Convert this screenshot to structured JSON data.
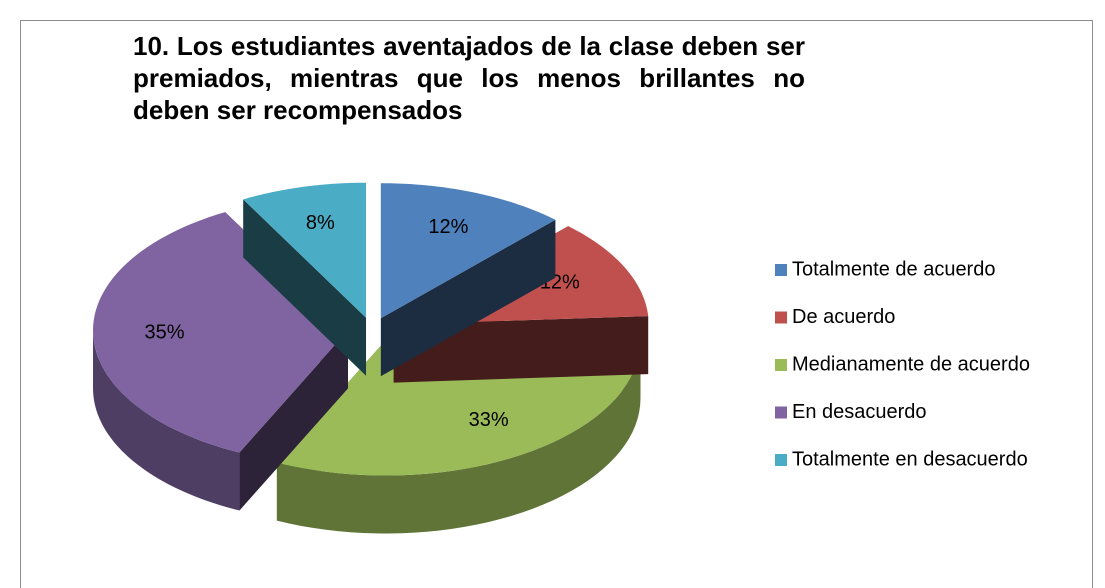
{
  "chart_data": {
    "type": "pie",
    "title": "10. Los estudiantes aventajados de la clase deben ser premiados, mientras que los menos brillantes no deben ser recompensados",
    "categories": [
      "Totalmente de acuerdo",
      "De acuerdo",
      "Medianamente de acuerdo",
      "En desacuerdo",
      "Totalmente en desacuerdo"
    ],
    "values": [
      12,
      12,
      33,
      35,
      8
    ],
    "value_labels": [
      "12%",
      "12%",
      "33%",
      "35%",
      "8%"
    ],
    "colors": [
      "#4f81bd",
      "#c0504d",
      "#9bbb59",
      "#8064a2",
      "#4bacc6"
    ],
    "legend": "right"
  }
}
